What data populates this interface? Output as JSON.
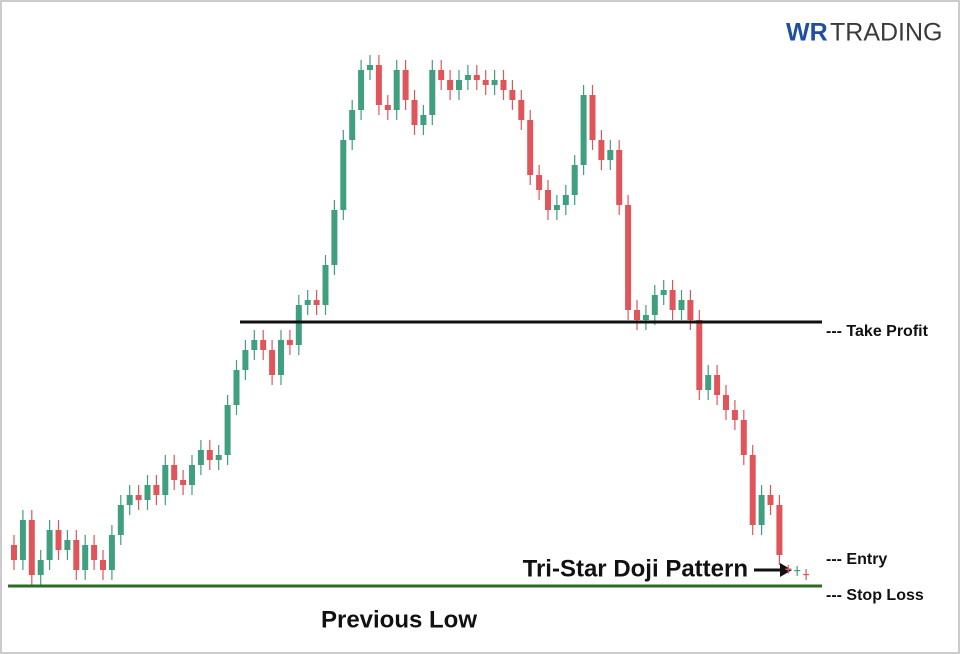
{
  "chart_data": {
    "type": "candlestick",
    "brand": {
      "mark": "WR",
      "name": "TRADING"
    },
    "annotations": {
      "pattern": "Tri-Star Doji Pattern",
      "previous_low": "Previous Low",
      "entry": "--- Entry"
    },
    "take_profit": {
      "label": "--- Take Profit",
      "value": 55.6
    },
    "stop_loss": {
      "label": "--- Stop Loss",
      "value": 2.8
    },
    "up_color": "#3f9f7f",
    "down_color": "#e0555a",
    "ylim": [
      0,
      112
    ],
    "open": [
      11,
      8,
      16,
      5,
      8,
      14,
      10,
      12,
      6,
      11,
      8,
      6,
      13,
      19,
      21,
      20,
      23,
      21,
      27,
      24,
      23,
      27,
      30,
      28,
      29,
      39,
      46,
      50,
      52,
      50,
      45,
      52,
      51,
      59,
      60,
      59,
      67,
      78,
      92,
      98,
      106,
      107,
      99,
      98,
      106,
      100,
      95,
      97,
      106,
      104,
      102,
      104,
      105,
      104,
      103,
      104,
      102,
      100,
      96,
      85,
      82,
      78,
      79,
      81,
      87,
      101,
      92,
      88,
      90,
      79,
      58,
      56,
      57,
      61,
      62,
      58,
      60,
      56,
      42,
      45,
      41,
      38,
      36,
      29,
      15,
      21,
      19,
      6.3,
      5.8,
      5.2
    ],
    "high": [
      13,
      18,
      18,
      10,
      16,
      16,
      14,
      14,
      13,
      13,
      10,
      15,
      21,
      23,
      23,
      25,
      25,
      29,
      29,
      26,
      29,
      32,
      32,
      31,
      41,
      48,
      52,
      54,
      54,
      52,
      54,
      54,
      61,
      62,
      62,
      69,
      80,
      94,
      100,
      108,
      109,
      109,
      101,
      108,
      108,
      102,
      99,
      108,
      108,
      106,
      106,
      107,
      107,
      106,
      106,
      106,
      104,
      102,
      98,
      87,
      84,
      81,
      83,
      89,
      103,
      103,
      94,
      92,
      92,
      81,
      60,
      59,
      63,
      64,
      64,
      62,
      62,
      58,
      47,
      47,
      43,
      40,
      38,
      31,
      23,
      23,
      21,
      7,
      6.8,
      6.2
    ],
    "low": [
      6,
      6,
      3,
      3,
      6,
      8,
      8,
      4,
      4,
      6,
      4,
      4,
      11,
      17,
      18,
      18,
      19,
      19,
      22,
      21,
      21,
      25,
      26,
      26,
      27,
      37,
      44,
      48,
      48,
      43,
      43,
      49,
      49,
      57,
      57,
      57,
      65,
      76,
      90,
      96,
      104,
      97,
      96,
      96,
      98,
      93,
      93,
      95,
      102,
      100,
      100,
      102,
      102,
      101,
      101,
      100,
      98,
      94,
      83,
      80,
      76,
      76,
      77,
      79,
      85,
      90,
      86,
      86,
      77,
      56,
      54,
      54,
      55,
      59,
      56,
      56,
      54,
      40,
      40,
      39,
      36,
      34,
      27,
      13,
      13,
      17,
      7,
      5.3,
      4.8,
      4
    ],
    "close": [
      8,
      16,
      5,
      8,
      14,
      10,
      12,
      6,
      11,
      8,
      6,
      13,
      19,
      21,
      20,
      23,
      21,
      27,
      24,
      23,
      27,
      30,
      28,
      29,
      39,
      46,
      50,
      52,
      50,
      45,
      52,
      51,
      59,
      60,
      59,
      67,
      78,
      92,
      98,
      106,
      107,
      99,
      98,
      106,
      100,
      95,
      97,
      106,
      104,
      102,
      104,
      105,
      104,
      103,
      104,
      102,
      100,
      96,
      85,
      82,
      78,
      79,
      81,
      87,
      101,
      92,
      88,
      90,
      79,
      58,
      56,
      57,
      61,
      62,
      58,
      60,
      56,
      42,
      45,
      41,
      38,
      36,
      29,
      15,
      21,
      19,
      9,
      6,
      6,
      5
    ]
  }
}
